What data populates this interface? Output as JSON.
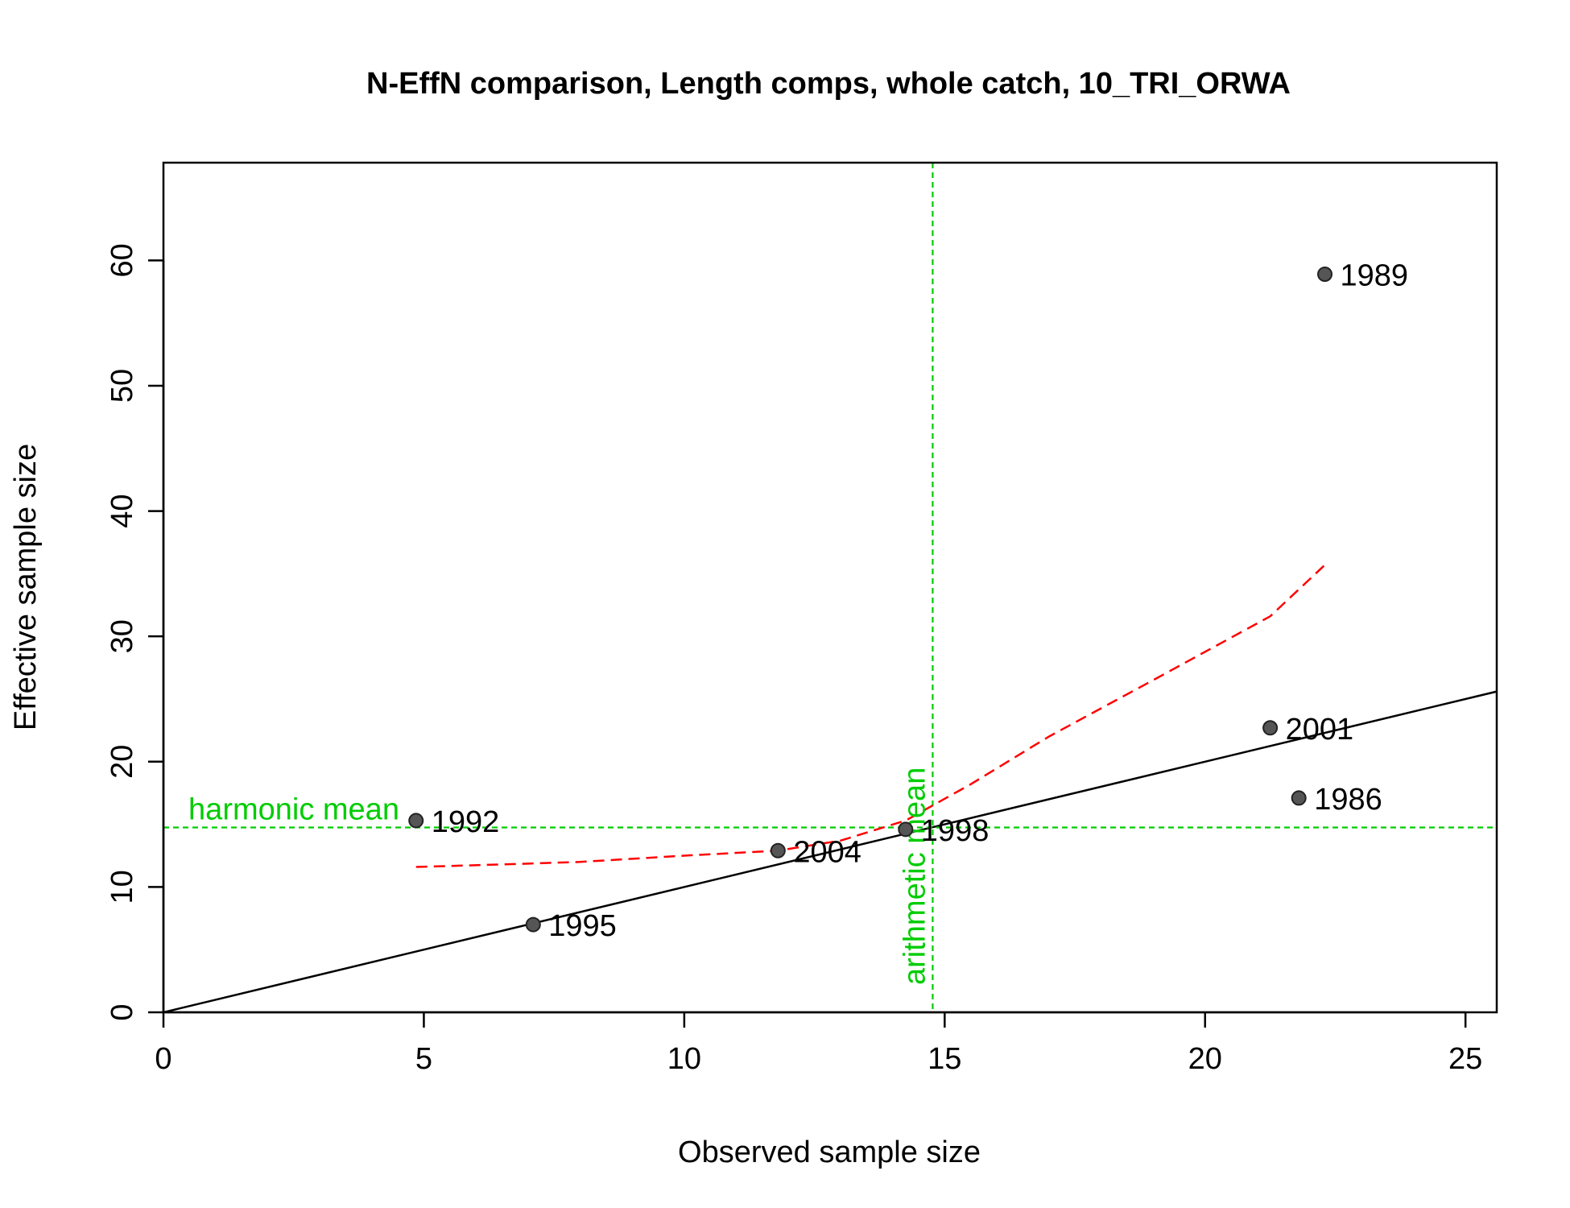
{
  "chart_data": {
    "type": "scatter",
    "title": "N-EffN comparison, Length comps, whole catch, 10_TRI_ORWA",
    "xlabel": "Observed sample size",
    "ylabel": "Effective sample size",
    "xlim": [
      0,
      25.6
    ],
    "ylim": [
      0,
      67.8
    ],
    "xticks": [
      0,
      5,
      10,
      15,
      20,
      25
    ],
    "yticks": [
      0,
      10,
      20,
      30,
      40,
      50,
      60
    ],
    "grid": false,
    "legend": "none",
    "points": [
      {
        "label": "1986",
        "x": 21.8,
        "y": 17.1
      },
      {
        "label": "1989",
        "x": 22.3,
        "y": 58.9
      },
      {
        "label": "1992",
        "x": 4.85,
        "y": 15.3
      },
      {
        "label": "1995",
        "x": 7.1,
        "y": 7.0
      },
      {
        "label": "1998",
        "x": 14.25,
        "y": 14.6
      },
      {
        "label": "2001",
        "x": 21.25,
        "y": 22.7
      },
      {
        "label": "2004",
        "x": 11.8,
        "y": 12.9
      }
    ],
    "one_to_one_line": {
      "x": [
        0,
        25.6
      ],
      "y": [
        0,
        25.6
      ]
    },
    "smoother": {
      "x": [
        4.85,
        6.5,
        8.0,
        10.0,
        11.8,
        13.0,
        14.25,
        15.5,
        17.0,
        19.0,
        21.25,
        22.3
      ],
      "y": [
        11.6,
        11.8,
        12.0,
        12.5,
        12.9,
        13.7,
        15.3,
        18.2,
        22.0,
        26.5,
        31.6,
        35.7
      ]
    },
    "harmonic_mean": {
      "label": "harmonic mean",
      "value": 14.75
    },
    "arithmetic_mean": {
      "label": "arithmetic mean",
      "value": 14.77
    },
    "colors": {
      "points_fill": "#555555",
      "points_stroke": "#222222",
      "one_to_one": "#000000",
      "smoother": "#ff0000",
      "mean_lines": "#00cc00"
    }
  }
}
